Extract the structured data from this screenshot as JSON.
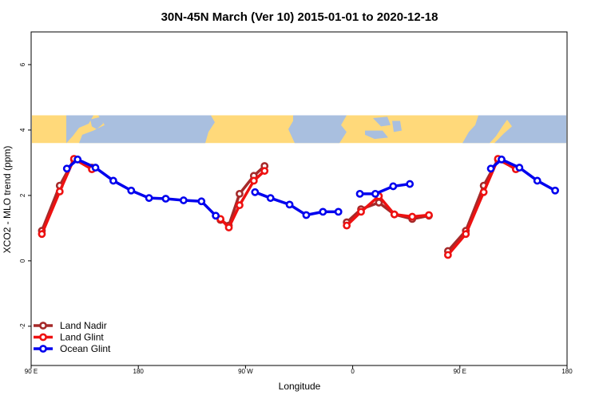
{
  "chart_data": {
    "type": "line",
    "title": "30N-45N March (Ver 10)   2015-01-01 to 2020-12-18",
    "xlabel": "Longitude",
    "ylabel": "XCO2 - MLO trend (ppm)",
    "xlim": [
      90,
      540
    ],
    "ylim": [
      -3.2,
      7.0
    ],
    "x_ticks": [
      {
        "value": 90,
        "label": "90 E"
      },
      {
        "value": 180,
        "label": "180"
      },
      {
        "value": 270,
        "label": "90 W"
      },
      {
        "value": 360,
        "label": "0"
      },
      {
        "value": 450,
        "label": "90 E"
      },
      {
        "value": 540,
        "label": "180"
      }
    ],
    "y_ticks": [
      {
        "value": -2,
        "label": "-2"
      },
      {
        "value": 0,
        "label": "0"
      },
      {
        "value": 2,
        "label": "2"
      },
      {
        "value": 4,
        "label": "4"
      },
      {
        "value": 6,
        "label": "6"
      }
    ],
    "map_band": {
      "y_min": 3.6,
      "y_max": 4.45,
      "land_color": "#ffd97a",
      "ocean_color": "#a9bfdf"
    },
    "legend_position": "bottom-left",
    "series": [
      {
        "name": "Land Nadir",
        "color": "#a52a2a",
        "segments": [
          [
            [
              99,
              0.92
            ],
            [
              114,
              2.3
            ],
            [
              126,
              3.1
            ],
            [
              141,
              2.85
            ]
          ],
          [
            [
              249,
              1.25
            ],
            [
              256,
              1.08
            ],
            [
              265,
              2.05
            ],
            [
              277,
              2.6
            ],
            [
              286,
              2.9
            ]
          ],
          [
            [
              355,
              1.18
            ],
            [
              367,
              1.58
            ],
            [
              382,
              1.78
            ],
            [
              395,
              1.42
            ],
            [
              410,
              1.28
            ],
            [
              424,
              1.38
            ]
          ],
          [
            [
              440,
              0.3
            ],
            [
              455,
              0.92
            ],
            [
              470,
              2.3
            ],
            [
              482,
              3.1
            ],
            [
              497,
              2.82
            ]
          ]
        ]
      },
      {
        "name": "Land Glint",
        "color": "#ee1111",
        "segments": [
          [
            [
              99,
              0.82
            ],
            [
              114,
              2.12
            ],
            [
              126,
              3.12
            ],
            [
              141,
              2.8
            ]
          ],
          [
            [
              249,
              1.28
            ],
            [
              256,
              1.02
            ],
            [
              265,
              1.7
            ],
            [
              277,
              2.45
            ],
            [
              286,
              2.75
            ]
          ],
          [
            [
              355,
              1.08
            ],
            [
              367,
              1.5
            ],
            [
              382,
              1.98
            ],
            [
              395,
              1.42
            ],
            [
              410,
              1.35
            ],
            [
              424,
              1.4
            ]
          ],
          [
            [
              440,
              0.18
            ],
            [
              455,
              0.82
            ],
            [
              470,
              2.1
            ],
            [
              482,
              3.12
            ],
            [
              497,
              2.8
            ]
          ]
        ]
      },
      {
        "name": "Ocean Glint",
        "color": "#0000ee",
        "segments": [
          [
            [
              120,
              2.82
            ],
            [
              129,
              3.1
            ],
            [
              144,
              2.85
            ],
            [
              159,
              2.45
            ],
            [
              174,
              2.15
            ],
            [
              189,
              1.92
            ],
            [
              203,
              1.9
            ],
            [
              218,
              1.85
            ],
            [
              233,
              1.82
            ],
            [
              245,
              1.38
            ]
          ],
          [
            [
              278,
              2.1
            ],
            [
              291,
              1.92
            ],
            [
              307,
              1.72
            ],
            [
              321,
              1.4
            ],
            [
              335,
              1.5
            ],
            [
              348,
              1.5
            ]
          ],
          [
            [
              366,
              2.05
            ],
            [
              379,
              2.05
            ],
            [
              394,
              2.28
            ],
            [
              408,
              2.35
            ]
          ],
          [
            [
              476,
              2.82
            ],
            [
              485,
              3.1
            ],
            [
              500,
              2.85
            ],
            [
              515,
              2.45
            ],
            [
              530,
              2.15
            ]
          ]
        ]
      }
    ]
  }
}
